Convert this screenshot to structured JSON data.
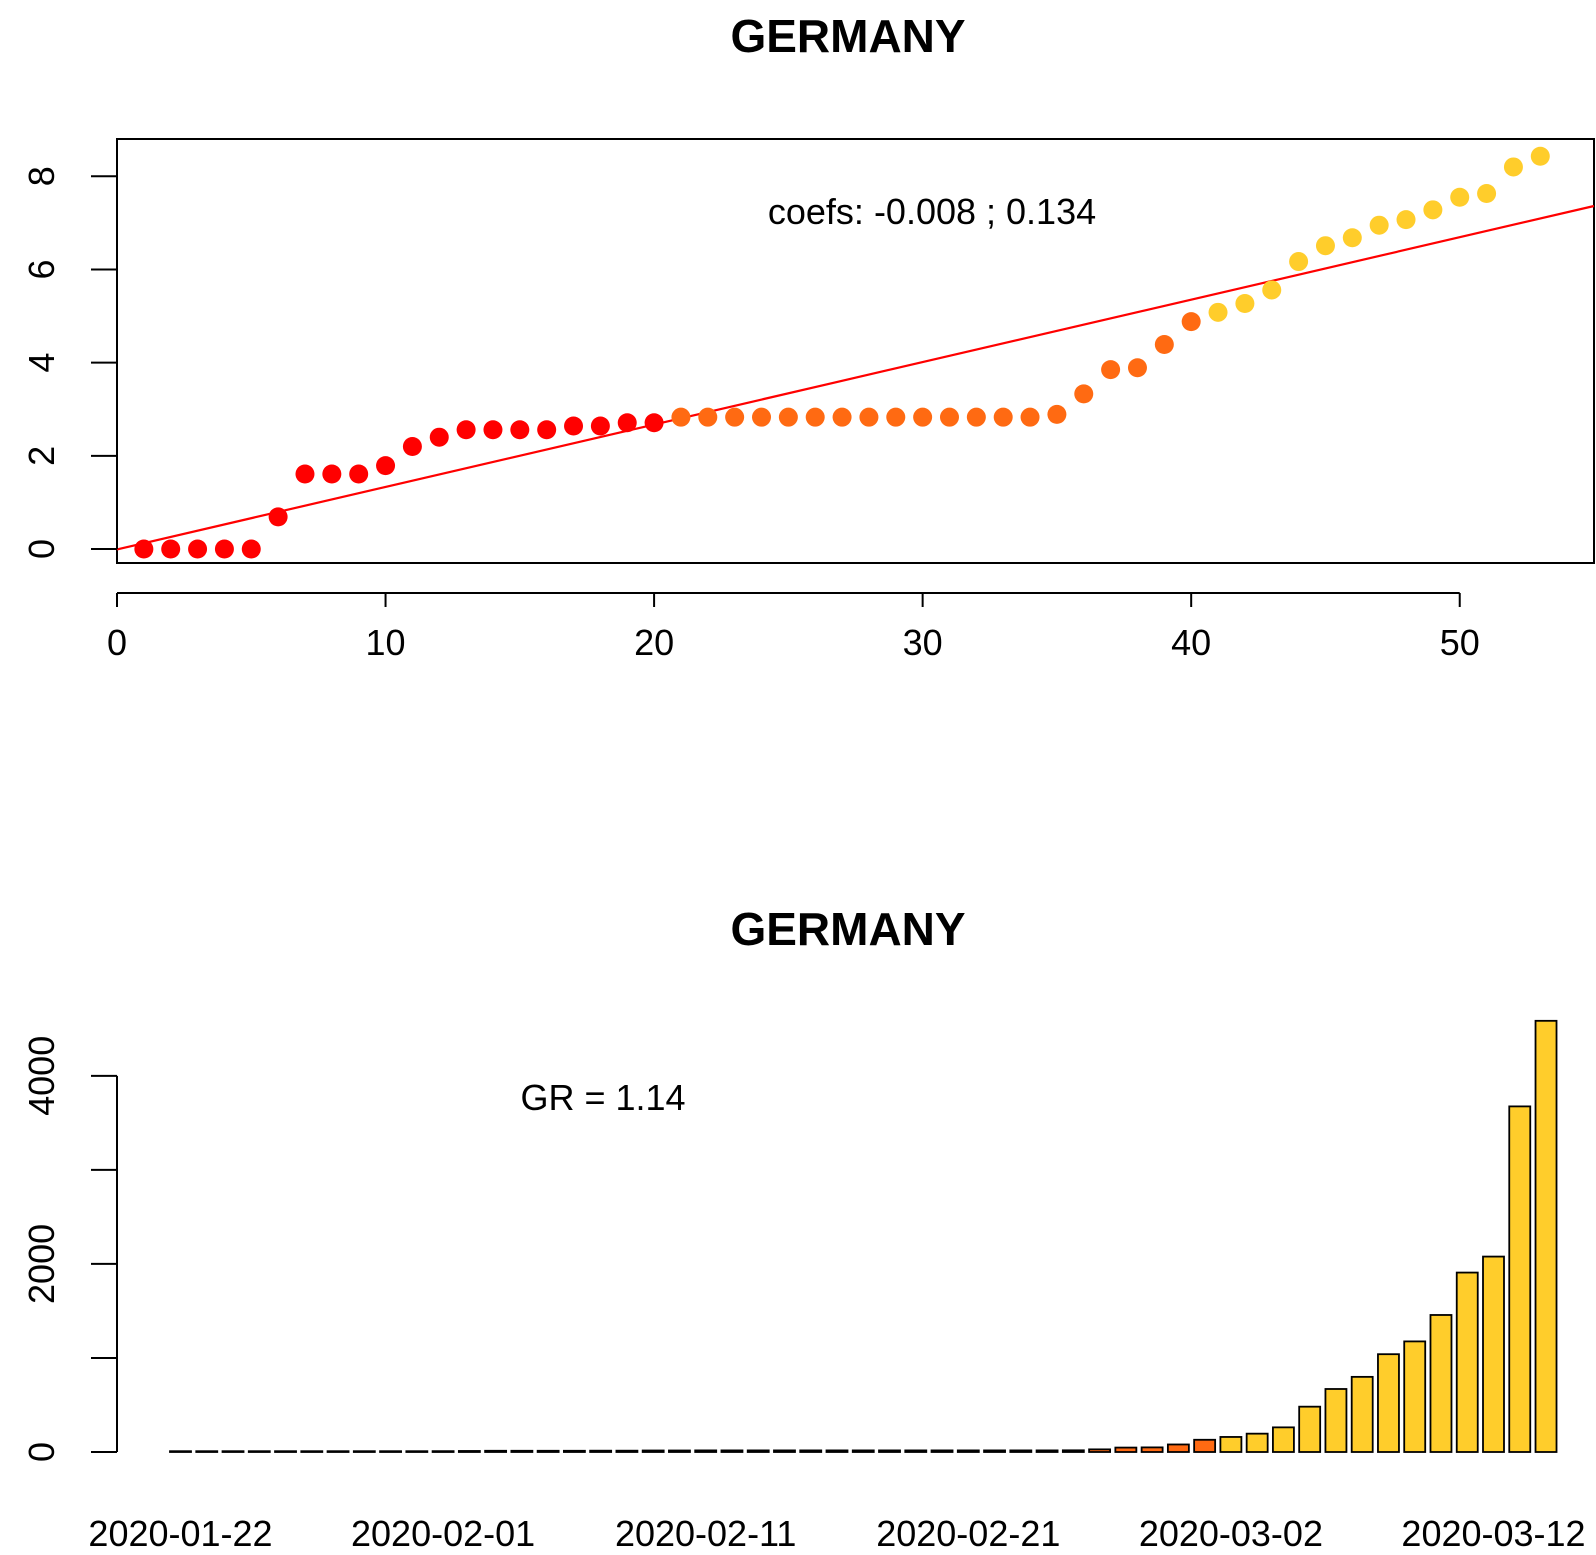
{
  "colors": {
    "red": "#ff0000",
    "orange": "#ff6a12",
    "yellow": "#ffcd2b",
    "fit_line": "#ff0000",
    "bar_border": "#000000"
  },
  "chart_data": [
    {
      "type": "scatter",
      "title": "GERMANY",
      "xlabel": "",
      "ylabel": "",
      "xlim": [
        0,
        55
      ],
      "ylim": [
        -0.3,
        8.8
      ],
      "x_ticks": [
        0,
        10,
        20,
        30,
        40,
        50
      ],
      "y_ticks": [
        0,
        2,
        4,
        6,
        8
      ],
      "annotation": "coefs:  -0.008 ; 0.134",
      "fit_line": {
        "intercept": -0.008,
        "slope": 0.134,
        "color": "#ff0000"
      },
      "point_colors": [
        "#ff0000",
        "#ff0000",
        "#ff0000",
        "#ff0000",
        "#ff0000",
        "#ff0000",
        "#ff0000",
        "#ff0000",
        "#ff0000",
        "#ff0000",
        "#ff0000",
        "#ff0000",
        "#ff0000",
        "#ff0000",
        "#ff0000",
        "#ff0000",
        "#ff0000",
        "#ff0000",
        "#ff0000",
        "#ff0000",
        "#ff6a12",
        "#ff6a12",
        "#ff6a12",
        "#ff6a12",
        "#ff6a12",
        "#ff6a12",
        "#ff6a12",
        "#ff6a12",
        "#ff6a12",
        "#ff6a12",
        "#ff6a12",
        "#ff6a12",
        "#ff6a12",
        "#ff6a12",
        "#ff6a12",
        "#ff6a12",
        "#ff6a12",
        "#ff6a12",
        "#ff6a12",
        "#ff6a12",
        "#ffcd2b",
        "#ffcd2b",
        "#ffcd2b",
        "#ffcd2b",
        "#ffcd2b",
        "#ffcd2b",
        "#ffcd2b",
        "#ffcd2b",
        "#ffcd2b",
        "#ffcd2b",
        "#ffcd2b",
        "#ffcd2b",
        "#ffcd2b"
      ],
      "x": [
        1,
        2,
        3,
        4,
        5,
        6,
        7,
        8,
        9,
        10,
        11,
        12,
        13,
        14,
        15,
        16,
        17,
        18,
        19,
        20,
        21,
        22,
        23,
        24,
        25,
        26,
        27,
        28,
        29,
        30,
        31,
        32,
        33,
        34,
        35,
        36,
        37,
        38,
        39,
        40,
        41,
        42,
        43,
        44,
        45,
        46,
        47,
        48,
        49,
        50,
        51,
        52,
        53
      ],
      "y": [
        0,
        0,
        0,
        0,
        0,
        0.69,
        1.61,
        1.61,
        1.61,
        1.79,
        2.2,
        2.4,
        2.56,
        2.56,
        2.56,
        2.56,
        2.64,
        2.64,
        2.71,
        2.71,
        2.83,
        2.83,
        2.83,
        2.83,
        2.83,
        2.83,
        2.83,
        2.83,
        2.83,
        2.83,
        2.83,
        2.83,
        2.83,
        2.83,
        2.89,
        3.33,
        3.85,
        3.89,
        4.39,
        4.88,
        5.08,
        5.27,
        5.56,
        6.17,
        6.51,
        6.68,
        6.95,
        7.07,
        7.28,
        7.55,
        7.63,
        8.2,
        8.43
      ]
    },
    {
      "type": "bar",
      "title": "GERMANY",
      "xlabel": "",
      "ylabel": "",
      "ylim": [
        0,
        4700
      ],
      "y_ticks": [
        0,
        1000,
        2000,
        3000,
        4000
      ],
      "y_tick_labels": [
        "0",
        "",
        "2000",
        "",
        "4000"
      ],
      "annotation": "GR =  1.14",
      "x_tick_labels": [
        "2020-01-22",
        "2020-02-01",
        "2020-02-11",
        "2020-02-21",
        "2020-03-02",
        "2020-03-12"
      ],
      "x_tick_label_index": [
        0,
        10,
        20,
        30,
        40,
        50
      ],
      "categories": [
        "2020-01-22",
        "2020-01-23",
        "2020-01-24",
        "2020-01-25",
        "2020-01-26",
        "2020-01-27",
        "2020-01-28",
        "2020-01-29",
        "2020-01-30",
        "2020-01-31",
        "2020-02-01",
        "2020-02-02",
        "2020-02-03",
        "2020-02-04",
        "2020-02-05",
        "2020-02-06",
        "2020-02-07",
        "2020-02-08",
        "2020-02-09",
        "2020-02-10",
        "2020-02-11",
        "2020-02-12",
        "2020-02-13",
        "2020-02-14",
        "2020-02-15",
        "2020-02-16",
        "2020-02-17",
        "2020-02-18",
        "2020-02-19",
        "2020-02-20",
        "2020-02-21",
        "2020-02-22",
        "2020-02-23",
        "2020-02-24",
        "2020-02-25",
        "2020-02-26",
        "2020-02-27",
        "2020-02-28",
        "2020-02-29",
        "2020-03-01",
        "2020-03-02",
        "2020-03-03",
        "2020-03-04",
        "2020-03-05",
        "2020-03-06",
        "2020-03-07",
        "2020-03-08",
        "2020-03-09",
        "2020-03-10",
        "2020-03-11",
        "2020-03-12",
        "2020-03-13",
        "2020-03-14"
      ],
      "bar_colors": [
        "#ff0000",
        "#ff0000",
        "#ff0000",
        "#ff0000",
        "#ff0000",
        "#ff0000",
        "#ff0000",
        "#ff0000",
        "#ff0000",
        "#ff0000",
        "#ff0000",
        "#ff0000",
        "#ff0000",
        "#ff0000",
        "#ff0000",
        "#ff0000",
        "#ff0000",
        "#ff0000",
        "#ff0000",
        "#ff0000",
        "#ff6a12",
        "#ff6a12",
        "#ff6a12",
        "#ff6a12",
        "#ff6a12",
        "#ff6a12",
        "#ff6a12",
        "#ff6a12",
        "#ff6a12",
        "#ff6a12",
        "#ff6a12",
        "#ff6a12",
        "#ff6a12",
        "#ff6a12",
        "#ff6a12",
        "#ff6a12",
        "#ff6a12",
        "#ff6a12",
        "#ff6a12",
        "#ff6a12",
        "#ffcd2b",
        "#ffcd2b",
        "#ffcd2b",
        "#ffcd2b",
        "#ffcd2b",
        "#ffcd2b",
        "#ffcd2b",
        "#ffcd2b",
        "#ffcd2b",
        "#ffcd2b",
        "#ffcd2b",
        "#ffcd2b",
        "#ffcd2b"
      ],
      "values": [
        1,
        1,
        1,
        1,
        1,
        2,
        5,
        5,
        5,
        6,
        9,
        11,
        13,
        13,
        13,
        13,
        14,
        14,
        16,
        16,
        17,
        17,
        17,
        17,
        17,
        17,
        17,
        17,
        17,
        17,
        17,
        17,
        17,
        17,
        18,
        28,
        47,
        49,
        80,
        130,
        160,
        195,
        262,
        482,
        670,
        799,
        1040,
        1176,
        1457,
        1908,
        2078,
        3675,
        4585
      ]
    }
  ]
}
